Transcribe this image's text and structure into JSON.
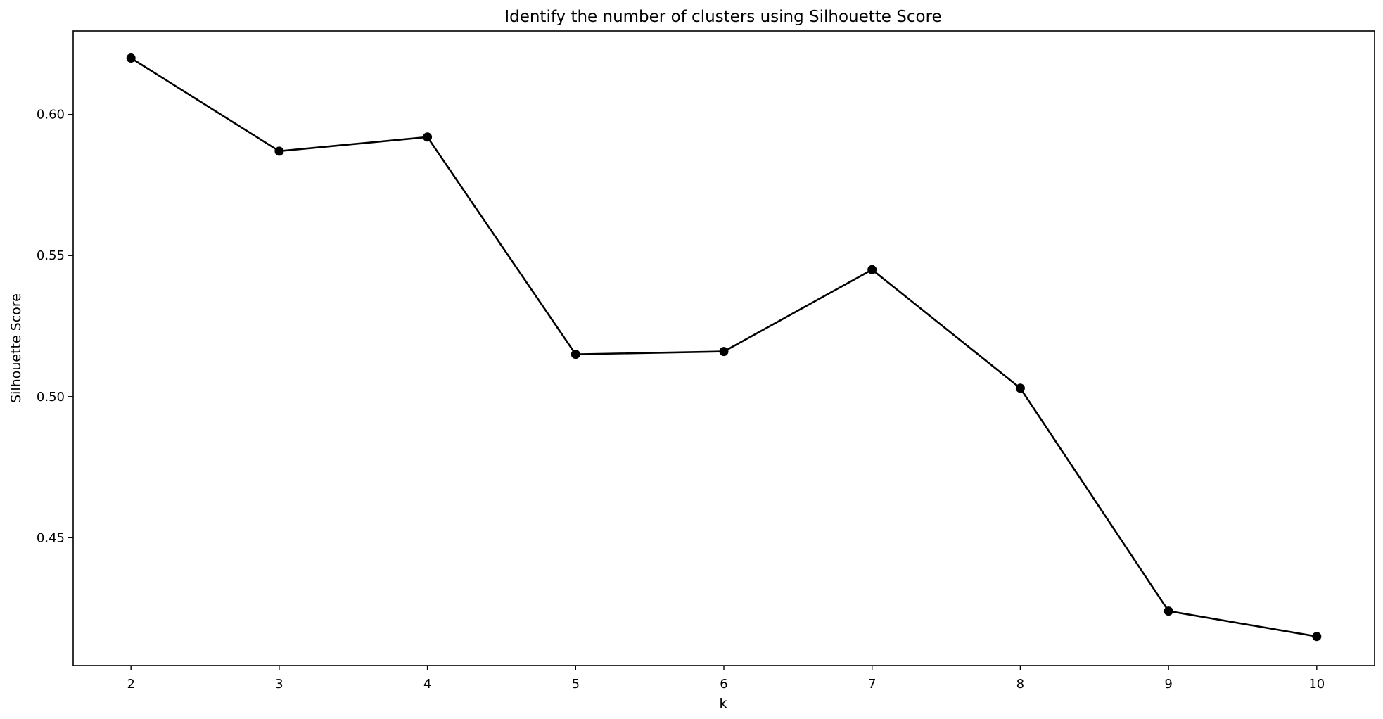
{
  "chart_data": {
    "type": "line",
    "title": "Identify the number of clusters using Silhouette Score",
    "xlabel": "k",
    "ylabel": "Silhouette Score",
    "x": [
      2,
      3,
      4,
      5,
      6,
      7,
      8,
      9,
      10
    ],
    "xticks": [
      "2",
      "3",
      "4",
      "5",
      "6",
      "7",
      "8",
      "9",
      "10"
    ],
    "yticks": [
      "0.45",
      "0.50",
      "0.55",
      "0.60"
    ],
    "ytick_values": [
      0.45,
      0.5,
      0.55,
      0.6
    ],
    "series": [
      {
        "values": [
          0.62,
          0.587,
          0.592,
          0.515,
          0.516,
          0.545,
          0.503,
          0.424,
          0.415
        ],
        "color": "#000000",
        "marker": "circle"
      }
    ],
    "xlim": [
      1.61,
      10.39
    ],
    "ylim": [
      0.4047,
      0.6296
    ],
    "grid": false,
    "legend": "none"
  }
}
